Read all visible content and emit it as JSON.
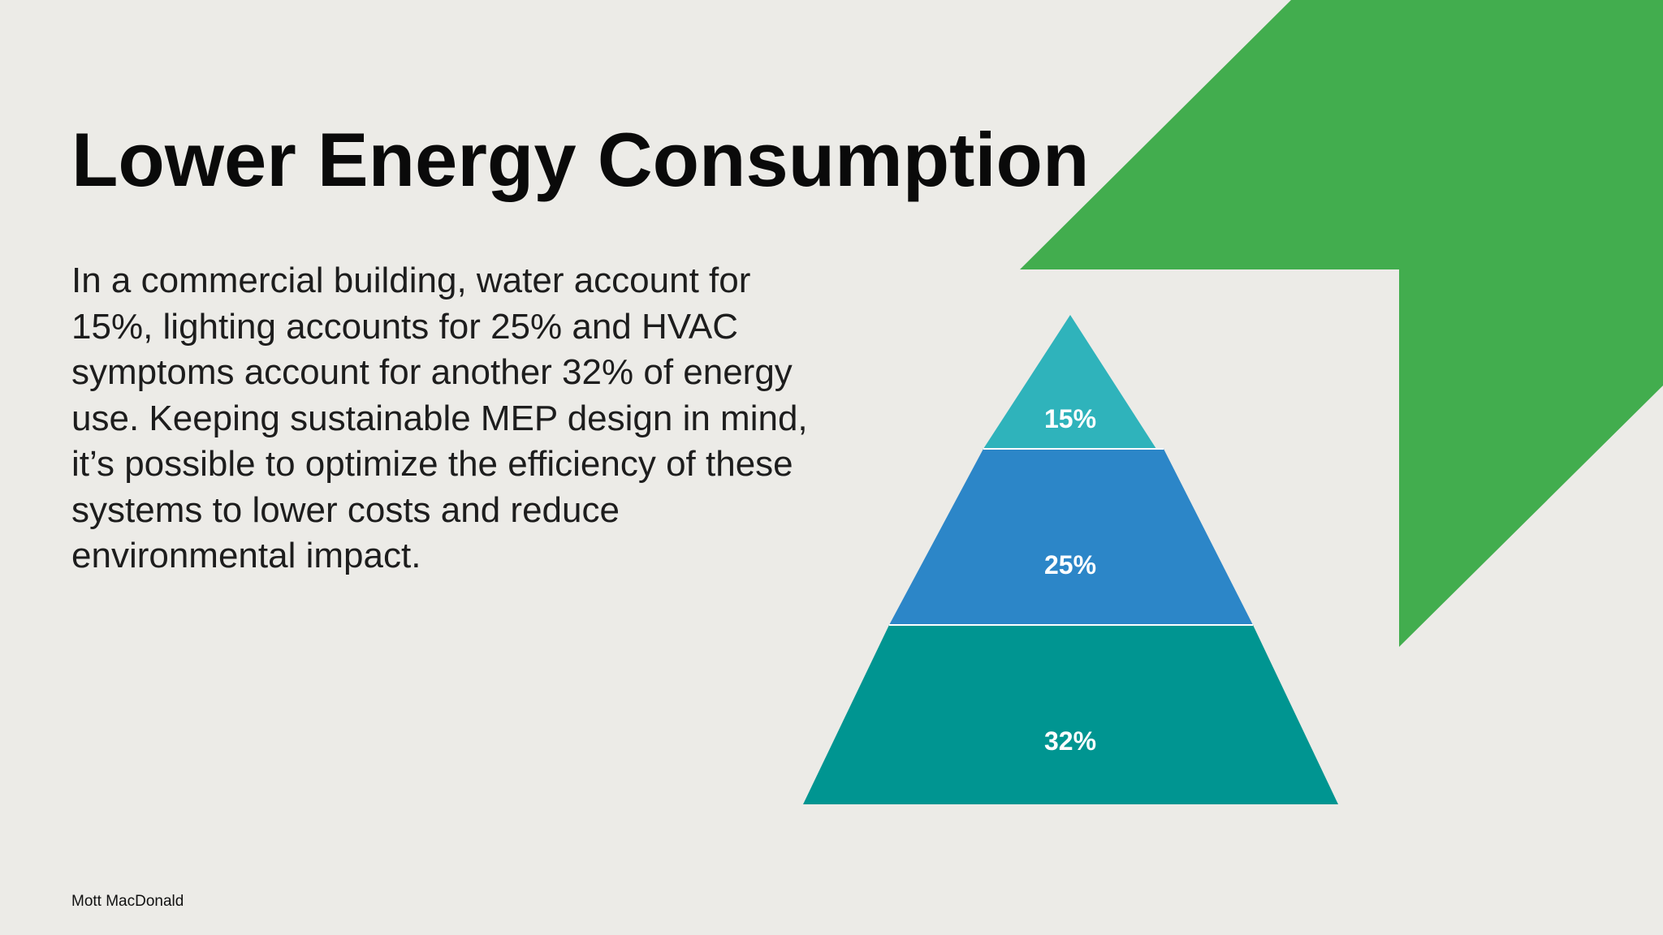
{
  "slide": {
    "title": "Lower Energy Consumption",
    "body_lines": [
      "In a commercial building, water account for",
      "15%, lighting accounts for 25% and HVAC",
      "symptoms account for another 32% of energy",
      "use. Keeping sustainable MEP design in mind,",
      "it’s possible to optimize the efficiency of these",
      "systems to lower costs and reduce",
      "environmental impact."
    ],
    "footer": "Mott MacDonald"
  },
  "pyramid": {
    "tiers": [
      {
        "label": "15%",
        "value": 15,
        "color": "#2fb3bb"
      },
      {
        "label": "25%",
        "value": 25,
        "color": "#2c86c8"
      },
      {
        "label": "32%",
        "value": 32,
        "color": "#009591"
      }
    ]
  },
  "colors": {
    "background": "#ecebe7",
    "accent_green": "#42ad4e"
  }
}
